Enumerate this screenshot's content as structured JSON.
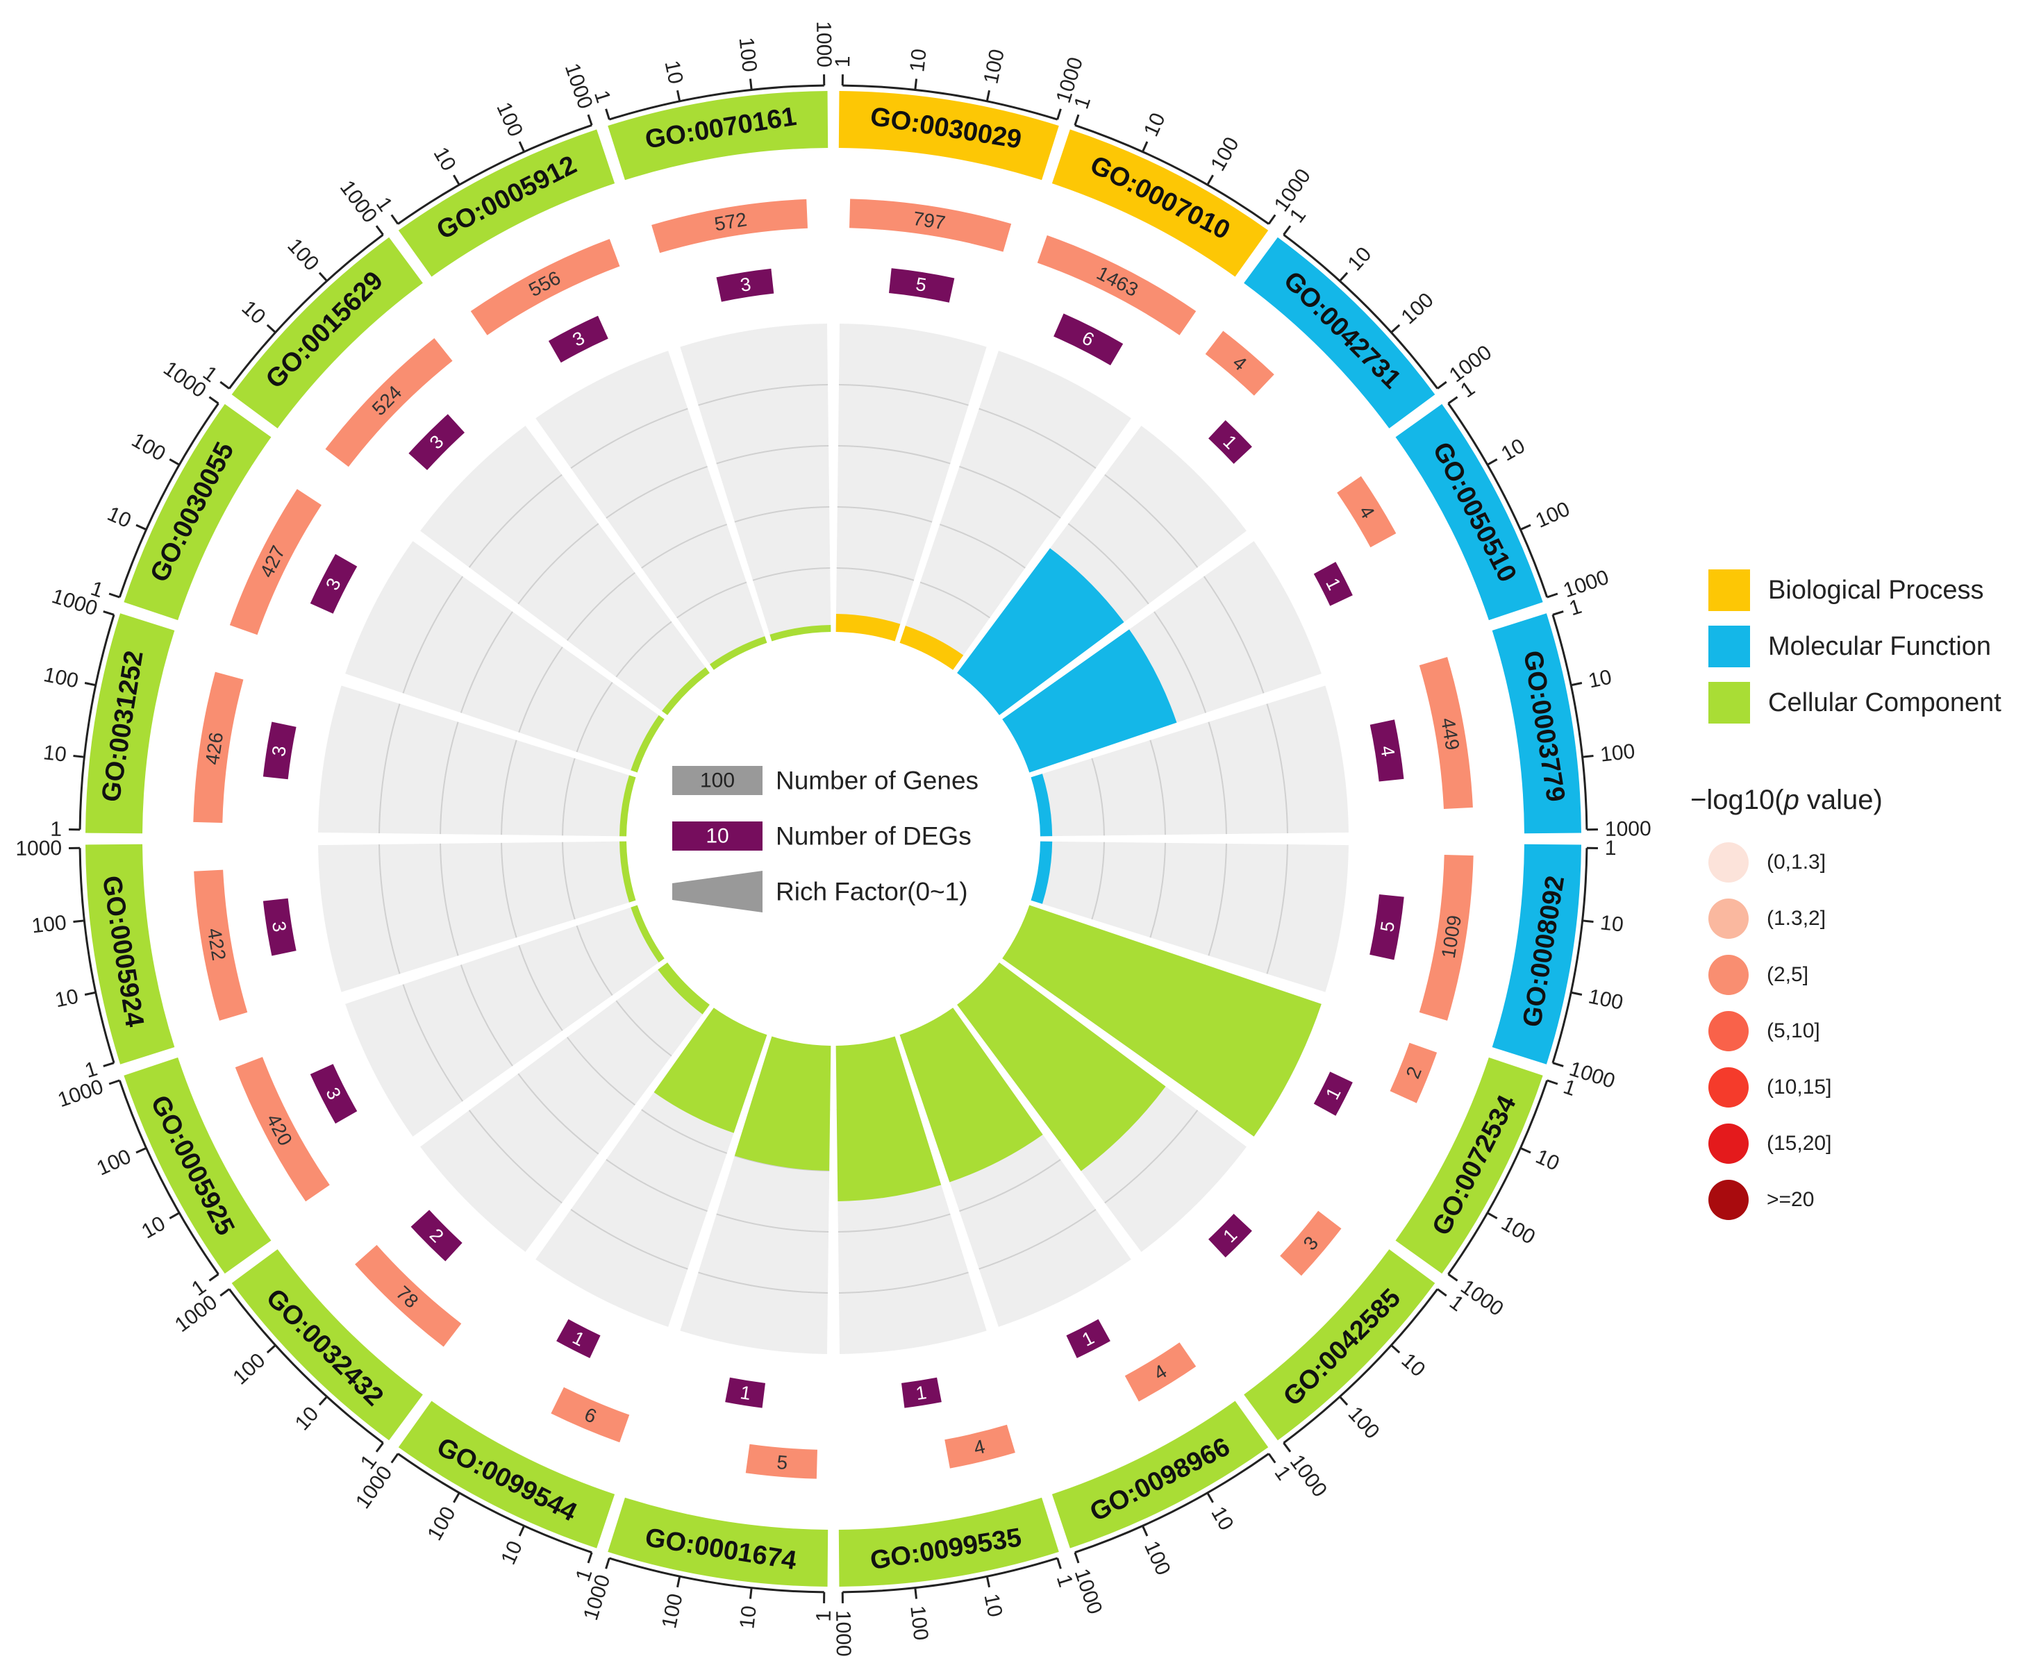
{
  "chart_data": {
    "type": "circular-go-enrichment",
    "scale_ticks": [
      "1",
      "10",
      "100",
      "1000"
    ],
    "terms": [
      {
        "id": "GO:0030029",
        "category": "bp",
        "genes": 797,
        "degs": 5,
        "degs_label": "5",
        "rich": 0.05,
        "pcat": 2
      },
      {
        "id": "GO:0007010",
        "category": "bp",
        "genes": 1463,
        "degs": 6,
        "degs_label": "6",
        "rich": 0.05,
        "pcat": 2
      },
      {
        "id": "GO:0042731",
        "category": "mf",
        "genes": 4,
        "degs": 1,
        "degs_label": "1",
        "rich": 0.5,
        "pcat": 2
      },
      {
        "id": "GO:0050510",
        "category": "mf",
        "genes": 4,
        "degs": 1,
        "degs_label": "1",
        "rich": 0.5,
        "pcat": 2
      },
      {
        "id": "GO:0003779",
        "category": "mf",
        "genes": 449,
        "degs": 4,
        "degs_label": "4",
        "rich": 0.03,
        "pcat": 2
      },
      {
        "id": "GO:0008092",
        "category": "mf",
        "genes": 1009,
        "degs": 5,
        "degs_label": "5",
        "rich": 0.03,
        "pcat": 2
      },
      {
        "id": "GO:0072534",
        "category": "cc",
        "genes": 2,
        "degs": 1,
        "degs_label": "1",
        "rich": 1.0,
        "pcat": 2
      },
      {
        "id": "GO:0042585",
        "category": "cc",
        "genes": 3,
        "degs": 1,
        "degs_label": "1",
        "rich": 0.67,
        "pcat": 2
      },
      {
        "id": "GO:0098966",
        "category": "cc",
        "genes": 4,
        "degs": 1,
        "degs_label": "1",
        "rich": 0.5,
        "pcat": 2
      },
      {
        "id": "GO:0099535",
        "category": "cc",
        "genes": 4,
        "degs": 1,
        "degs_label": "1",
        "rich": 0.5,
        "pcat": 2
      },
      {
        "id": "GO:0001674",
        "category": "cc",
        "genes": 5,
        "degs": 1,
        "degs_label": "1",
        "rich": 0.4,
        "pcat": 2
      },
      {
        "id": "GO:0099544",
        "category": "cc",
        "genes": 6,
        "degs": 1,
        "degs_label": "1",
        "rich": 0.33,
        "pcat": 2
      },
      {
        "id": "GO:0032432",
        "category": "cc",
        "genes": 78,
        "degs": 2,
        "degs_label": "2",
        "rich": 0.03,
        "pcat": 2
      },
      {
        "id": "GO:0005925",
        "category": "cc",
        "genes": 420,
        "degs": 3,
        "degs_label": "3",
        "rich": 0.01,
        "pcat": 2
      },
      {
        "id": "GO:0005924",
        "category": "cc",
        "genes": 422,
        "degs": 3,
        "degs_label": "3",
        "rich": 0.01,
        "pcat": 2
      },
      {
        "id": "GO:0031252",
        "category": "cc",
        "genes": 426,
        "degs": 3,
        "degs_label": "3",
        "rich": 0.01,
        "pcat": 2
      },
      {
        "id": "GO:0030055",
        "category": "cc",
        "genes": 427,
        "degs": 3,
        "degs_label": "3",
        "rich": 0.01,
        "pcat": 2
      },
      {
        "id": "GO:0015629",
        "category": "cc",
        "genes": 524,
        "degs": 3,
        "degs_label": "3",
        "rich": 0.01,
        "pcat": 2
      },
      {
        "id": "GO:0005912",
        "category": "cc",
        "genes": 556,
        "degs": 3,
        "degs_label": "3",
        "rich": 0.01,
        "pcat": 2
      },
      {
        "id": "GO:0070161",
        "category": "cc",
        "genes": 572,
        "degs": 3,
        "degs_label": "3",
        "rich": 0.01,
        "pcat": 2
      }
    ],
    "center_legend": [
      {
        "swatch": "100",
        "label": "Number of Genes"
      },
      {
        "swatch": "10",
        "label": "Number of DEGs"
      },
      {
        "swatch": "",
        "label": "Rich Factor(0~1)"
      }
    ],
    "categories": [
      {
        "key": "bp",
        "label": "Biological Process",
        "color": "#FDC705"
      },
      {
        "key": "mf",
        "label": "Molecular Function",
        "color": "#14B7E8"
      },
      {
        "key": "cc",
        "label": "Cellular Component",
        "color": "#A9DD35"
      }
    ],
    "pvalue_legend": {
      "title_prefix": "−log10(",
      "title_italic": "p",
      "title_suffix": " value)",
      "bins": [
        {
          "label": "(0,1.3]",
          "color": "#FCE3DA"
        },
        {
          "label": "(1.3,2]",
          "color": "#FAB89F"
        },
        {
          "label": "(2,5]",
          "color": "#F98E71"
        },
        {
          "label": "(5,10]",
          "color": "#F9624A"
        },
        {
          "label": "(10,15]",
          "color": "#F53B2B"
        },
        {
          "label": "(15,20]",
          "color": "#E41A1C"
        },
        {
          "label": ">=20",
          "color": "#A90B0E"
        }
      ]
    },
    "colors": {
      "degs": "#760D5D",
      "background_sector": "#EEEEEE",
      "grid_line": "#D0D0D0",
      "legend_gene_swatch": "#999999",
      "legend_rich_swatch": "#999999"
    }
  }
}
